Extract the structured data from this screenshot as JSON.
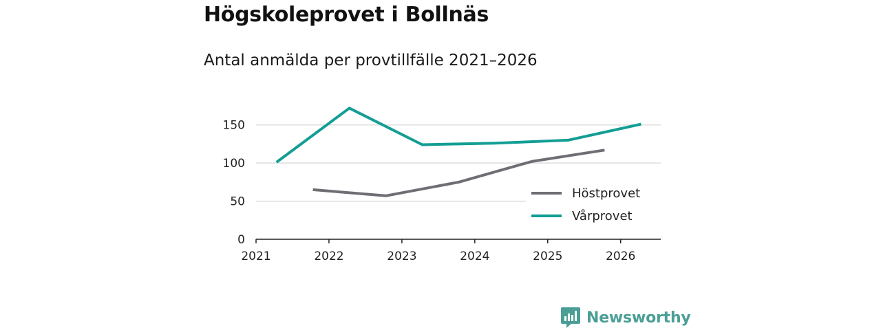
{
  "header": {
    "title": "Högskoleprovet i Bollnäs",
    "subtitle": "Antal anmälda per provtillfälle 2021–2026"
  },
  "brand": {
    "name": "Newsworthy",
    "color": "#4a9e95"
  },
  "colors": {
    "hostprovet": "#6e6e75",
    "varprovet": "#139e94",
    "grid": "#dddddd",
    "axis": "#222222"
  },
  "chart_data": {
    "type": "line",
    "title": "Högskoleprovet i Bollnäs",
    "subtitle": "Antal anmälda per provtillfälle 2021–2026",
    "xlabel": "",
    "ylabel": "",
    "xlim": [
      2021,
      2026.55
    ],
    "ylim": [
      0,
      175
    ],
    "x_ticks": [
      2021,
      2022,
      2023,
      2024,
      2025,
      2026
    ],
    "y_ticks": [
      0,
      50,
      100,
      150
    ],
    "grid": "horizontal",
    "legend_position": "bottom-right",
    "series": [
      {
        "name": "Höstprovet",
        "color": "#6e6e75",
        "x": [
          2021.78,
          2022.78,
          2023.78,
          2024.78,
          2025.78
        ],
        "values": [
          65,
          57,
          75,
          102,
          117
        ]
      },
      {
        "name": "Vårprovet",
        "color": "#139e94",
        "x": [
          2021.28,
          2022.28,
          2023.28,
          2024.28,
          2025.28,
          2026.28
        ],
        "values": [
          101,
          172,
          124,
          126,
          130,
          151
        ]
      }
    ]
  }
}
